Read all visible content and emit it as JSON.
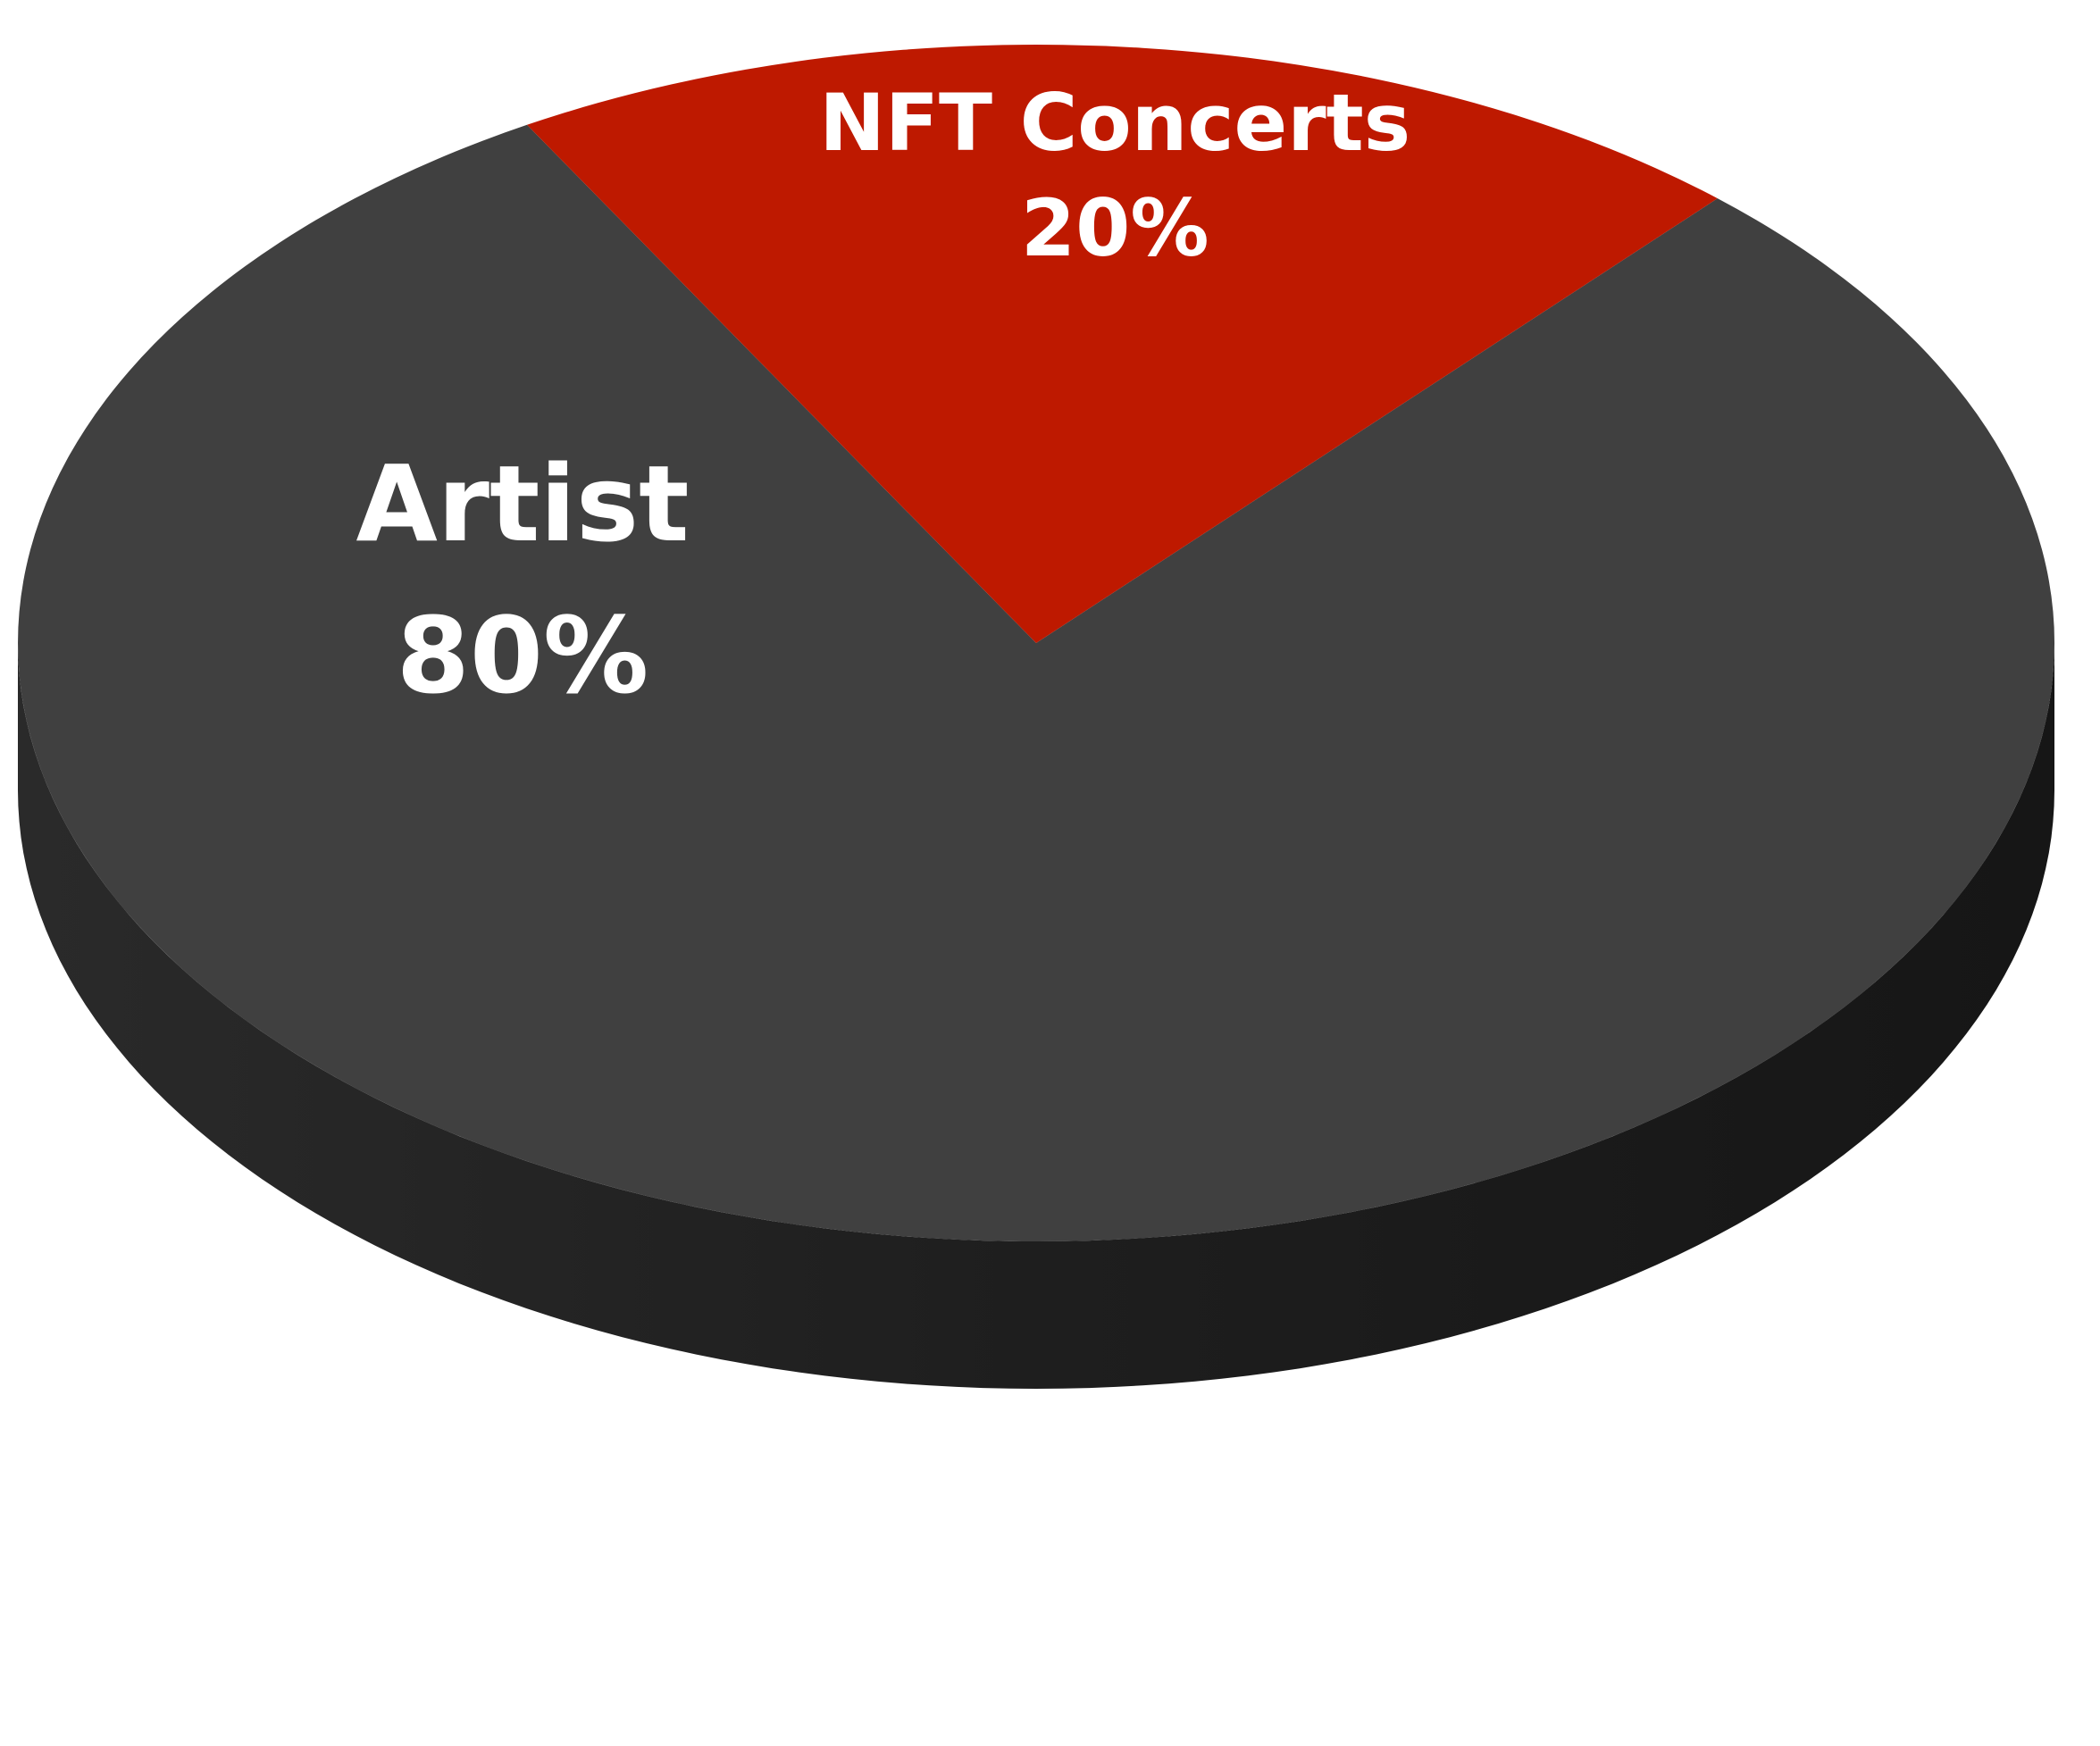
{
  "chart_data": {
    "type": "pie",
    "style": "3d",
    "slices": [
      {
        "label": "Artist",
        "value_label": "80%",
        "value": 80,
        "color": "#404040",
        "side_color": "#202020"
      },
      {
        "label": "NFT Concerts",
        "value_label": "20%",
        "value": 20,
        "color": "#be1900",
        "side_color": "#7a1000"
      }
    ],
    "legend": "none",
    "data_labels": "inside"
  }
}
